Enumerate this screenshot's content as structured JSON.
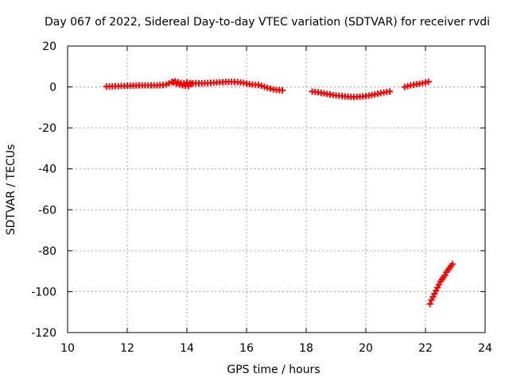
{
  "chart_data": {
    "type": "scatter",
    "title": "Day 067 of 2022, Sidereal Day-to-day VTEC variation (SDTVAR) for receiver rvdi",
    "xlabel": "GPS time / hours",
    "ylabel": "SDTVAR / TECUs",
    "xlim": [
      10,
      24
    ],
    "ylim": [
      -120,
      20
    ],
    "xticks": [
      10,
      12,
      14,
      16,
      18,
      20,
      22,
      24
    ],
    "yticks": [
      -120,
      -100,
      -80,
      -60,
      -40,
      -20,
      0,
      20
    ],
    "grid": true,
    "marker": "cross",
    "color": "#ff0000",
    "series": [
      {
        "x": [
          11.3,
          11.4,
          11.5,
          11.6,
          11.7,
          11.8,
          11.9,
          12.0,
          12.1,
          12.2,
          12.3,
          12.4,
          12.5,
          12.6,
          12.7,
          12.8,
          12.9,
          13.0,
          13.1,
          13.2,
          13.3,
          13.4,
          13.5,
          13.55,
          13.6,
          13.65,
          13.7,
          13.75,
          13.8,
          13.85,
          13.9,
          13.95,
          14.0,
          14.05,
          14.1,
          14.15,
          14.2,
          14.3,
          14.4,
          14.5,
          14.6,
          14.7,
          14.8,
          14.9,
          15.0,
          15.1,
          15.2,
          15.3,
          15.4,
          15.5,
          15.6,
          15.7,
          15.8,
          15.9,
          16.0,
          16.1,
          16.2,
          16.3,
          16.4,
          16.5,
          16.6,
          16.7,
          16.8,
          16.9,
          17.0,
          17.1,
          17.2
        ],
        "y": [
          0.2,
          0.3,
          0.3,
          0.4,
          0.4,
          0.5,
          0.5,
          0.6,
          0.6,
          0.7,
          0.7,
          0.8,
          0.8,
          0.8,
          0.8,
          0.8,
          0.8,
          0.8,
          0.9,
          1.0,
          1.2,
          1.8,
          2.5,
          2.2,
          2.8,
          1.6,
          2.4,
          1.2,
          2.0,
          0.8,
          1.8,
          0.6,
          2.2,
          0.4,
          2.0,
          1.4,
          1.8,
          1.9,
          1.8,
          1.8,
          1.9,
          1.9,
          2.0,
          2.1,
          2.2,
          2.3,
          2.4,
          2.5,
          2.5,
          2.6,
          2.5,
          2.4,
          2.2,
          2.0,
          1.7,
          1.4,
          1.2,
          1.1,
          1.0,
          0.6,
          0.1,
          -0.4,
          -0.8,
          -1.2,
          -1.4,
          -1.5,
          -1.6
        ]
      },
      {
        "x": [
          18.2,
          18.3,
          18.4,
          18.5,
          18.6,
          18.7,
          18.8,
          18.9,
          19.0,
          19.1,
          19.2,
          19.3,
          19.4,
          19.5,
          19.6,
          19.7,
          19.8,
          19.9,
          20.0,
          20.1,
          20.2,
          20.3,
          20.4,
          20.5,
          20.6,
          20.7,
          20.8
        ],
        "y": [
          -2.2,
          -2.4,
          -2.6,
          -2.9,
          -3.1,
          -3.4,
          -3.6,
          -3.9,
          -4.1,
          -4.3,
          -4.4,
          -4.6,
          -4.7,
          -4.8,
          -4.9,
          -4.8,
          -4.7,
          -4.6,
          -4.4,
          -4.2,
          -3.9,
          -3.6,
          -3.3,
          -3.0,
          -2.7,
          -2.4,
          -2.2
        ]
      },
      {
        "x": [
          21.3,
          21.4,
          21.5,
          21.6,
          21.7,
          21.8,
          21.9,
          22.0,
          22.1
        ],
        "y": [
          0.0,
          0.4,
          0.8,
          1.1,
          1.4,
          1.6,
          1.9,
          2.2,
          2.6
        ]
      },
      {
        "x": [
          22.15,
          22.2,
          22.25,
          22.3,
          22.35,
          22.4,
          22.45,
          22.5,
          22.55,
          22.6,
          22.65,
          22.7,
          22.75,
          22.8,
          22.85,
          22.9
        ],
        "y": [
          -106,
          -104,
          -102.5,
          -101,
          -99.5,
          -98,
          -96.5,
          -95,
          -94,
          -93,
          -92,
          -90.5,
          -89.5,
          -88.5,
          -87.5,
          -86.5
        ]
      }
    ]
  }
}
